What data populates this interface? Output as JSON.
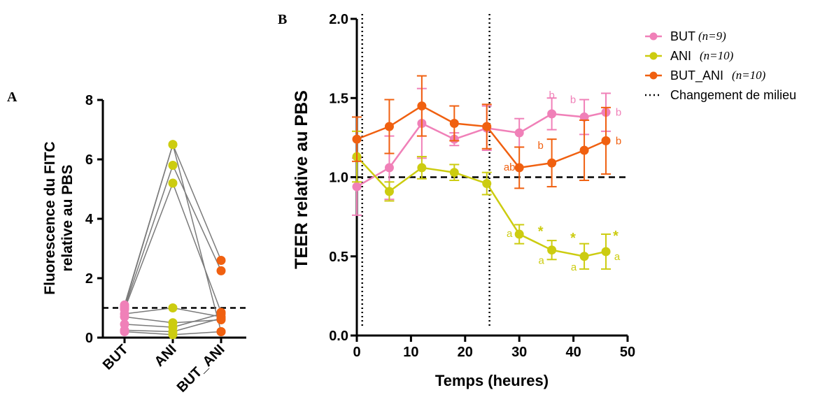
{
  "chart_data": [
    {
      "panel": "A",
      "type": "scatter",
      "ylabel_line1": "Fluorescence du FITC",
      "ylabel_line2": "relative au PBS",
      "categories": [
        "BUT",
        "ANI",
        "BUT_ANI"
      ],
      "yticks": [
        "0",
        "2",
        "4",
        "6",
        "8"
      ],
      "ylim": [
        0,
        8
      ],
      "reference_line": 1.0,
      "colors": {
        "BUT": "#f080b8",
        "ANI": "#cccc10",
        "BUT_ANI": "#f06010",
        "lines": "#7a7a7a"
      },
      "paired_samples": [
        [
          1.1,
          6.5,
          0.2
        ],
        [
          1.05,
          6.5,
          2.6
        ],
        [
          1.0,
          5.8,
          2.25
        ],
        [
          0.95,
          5.2,
          0.85
        ],
        [
          0.8,
          1.0,
          0.7
        ],
        [
          0.7,
          0.5,
          0.6
        ],
        [
          0.45,
          0.35,
          0.8
        ],
        [
          0.25,
          0.2,
          0.65
        ],
        [
          0.2,
          0.1,
          0.2
        ]
      ]
    },
    {
      "panel": "B",
      "type": "line",
      "xlabel": "Temps (heures)",
      "ylabel": "TEER relative au PBS",
      "xticks": [
        "0",
        "10",
        "20",
        "30",
        "40",
        "50"
      ],
      "yticks": [
        "0.0",
        "0.5",
        "1.0",
        "1.5",
        "2.0"
      ],
      "xlim": [
        0,
        50
      ],
      "ylim": [
        0,
        2.0
      ],
      "reference_line": 1.0,
      "medium_changes": [
        1,
        24.5
      ],
      "legend_position": "top-right",
      "legend_change_label": "Changement de milieu",
      "series": [
        {
          "name": "BUT",
          "n_label": "(n=9)",
          "color": "#f080b8",
          "x": [
            0,
            6,
            12,
            18,
            24,
            30,
            36,
            42,
            46
          ],
          "y": [
            0.94,
            1.06,
            1.34,
            1.24,
            1.31,
            1.28,
            1.4,
            1.38,
            1.41
          ],
          "err": [
            0.18,
            0.2,
            0.22,
            0.04,
            0.14,
            0.09,
            0.1,
            0.11,
            0.12
          ],
          "sig": [
            {
              "i": 6,
              "text": "b",
              "pos": "above"
            },
            {
              "i": 7,
              "text": "b",
              "pos": "above-left"
            },
            {
              "i": 8,
              "text": "b",
              "pos": "right"
            }
          ]
        },
        {
          "name": "ANI",
          "n_label": "(n=10)",
          "color": "#cccc10",
          "x": [
            0,
            6,
            12,
            18,
            24,
            30,
            36,
            42,
            46
          ],
          "y": [
            1.13,
            0.91,
            1.06,
            1.03,
            0.96,
            0.64,
            0.54,
            0.5,
            0.53
          ],
          "err": [
            0.16,
            0.06,
            0.07,
            0.05,
            0.07,
            0.06,
            0.06,
            0.08,
            0.11
          ],
          "sig": [
            {
              "i": 5,
              "text": "a",
              "pos": "left"
            },
            {
              "i": 6,
              "text": "a",
              "pos": "below-left"
            },
            {
              "i": 7,
              "text": "a",
              "pos": "below-left"
            },
            {
              "i": 8,
              "text": "a",
              "pos": "right-low"
            }
          ],
          "stars": [
            {
              "i": 6,
              "text": "*",
              "pos": "above-left"
            },
            {
              "i": 7,
              "text": "*",
              "pos": "above-left"
            },
            {
              "i": 8,
              "text": "*",
              "pos": "above-right"
            }
          ]
        },
        {
          "name": "BUT_ANI",
          "n_label": "(n=10)",
          "color": "#f06010",
          "x": [
            0,
            6,
            12,
            18,
            24,
            30,
            36,
            42,
            46
          ],
          "y": [
            1.24,
            1.32,
            1.45,
            1.34,
            1.32,
            1.06,
            1.09,
            1.17,
            1.23
          ],
          "err": [
            0.14,
            0.17,
            0.19,
            0.11,
            0.14,
            0.13,
            0.15,
            0.19,
            0.21
          ],
          "sig": [
            {
              "i": 5,
              "text": "ab",
              "pos": "left"
            },
            {
              "i": 6,
              "text": "b",
              "pos": "above-left"
            },
            {
              "i": 8,
              "text": "b",
              "pos": "right"
            }
          ]
        }
      ]
    }
  ]
}
